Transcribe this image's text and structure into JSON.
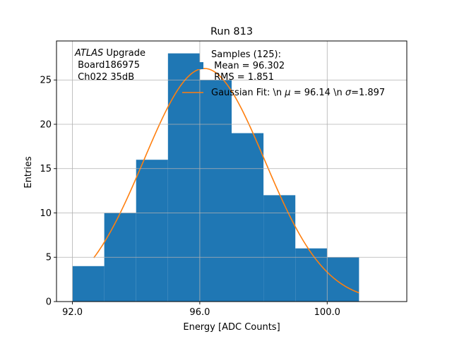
{
  "chart_data": {
    "type": "bar",
    "title": "Run 813",
    "xlabel": "Energy [ADC Counts]",
    "ylabel": "Entries",
    "xlim": [
      91.5,
      102.5
    ],
    "ylim": [
      0,
      29.4
    ],
    "xticks": [
      92.0,
      96.0,
      100.0
    ],
    "xtick_labels": [
      "92.0",
      "96.0",
      "100.0"
    ],
    "yticks": [
      0,
      5,
      10,
      15,
      20,
      25
    ],
    "grid": true,
    "bins": [
      {
        "left": 92,
        "right": 93,
        "count": 4
      },
      {
        "left": 93,
        "right": 94,
        "count": 10
      },
      {
        "left": 94,
        "right": 95,
        "count": 16
      },
      {
        "left": 95,
        "right": 96,
        "count": 28
      },
      {
        "left": 96,
        "right": 97,
        "count": 25
      },
      {
        "left": 97,
        "right": 98,
        "count": 19
      },
      {
        "left": 98,
        "right": 99,
        "count": 12
      },
      {
        "left": 99,
        "right": 100,
        "count": 6
      },
      {
        "left": 100,
        "right": 101,
        "count": 5
      }
    ],
    "fit": {
      "label": "Gaussian Fit: \\n $\\mu$ = 96.14 \\n $\\sigma$=1.897",
      "mu": 96.14,
      "sigma": 1.897,
      "amplitude": 26.3,
      "x_range": [
        92.67,
        101.0
      ]
    },
    "legend": {
      "placement": "top-right",
      "hist_entry_lines": [
        "Samples (125):",
        " Mean = 96.302",
        " RMS = 1.851"
      ],
      "fit_entry_parts": [
        "Gaussian Fit: \\n ",
        "μ",
        " = 96.14 \\n ",
        "σ",
        "=1.897"
      ]
    },
    "annotation": {
      "line1_italic": "ATLAS",
      "line1_rest": " Upgrade",
      "line2": " Board186975",
      "line3": " Ch022 35dB"
    },
    "colors": {
      "hist": "#1f77b4",
      "fit": "#ff7f0e",
      "grid": "#b0b0b0"
    }
  }
}
